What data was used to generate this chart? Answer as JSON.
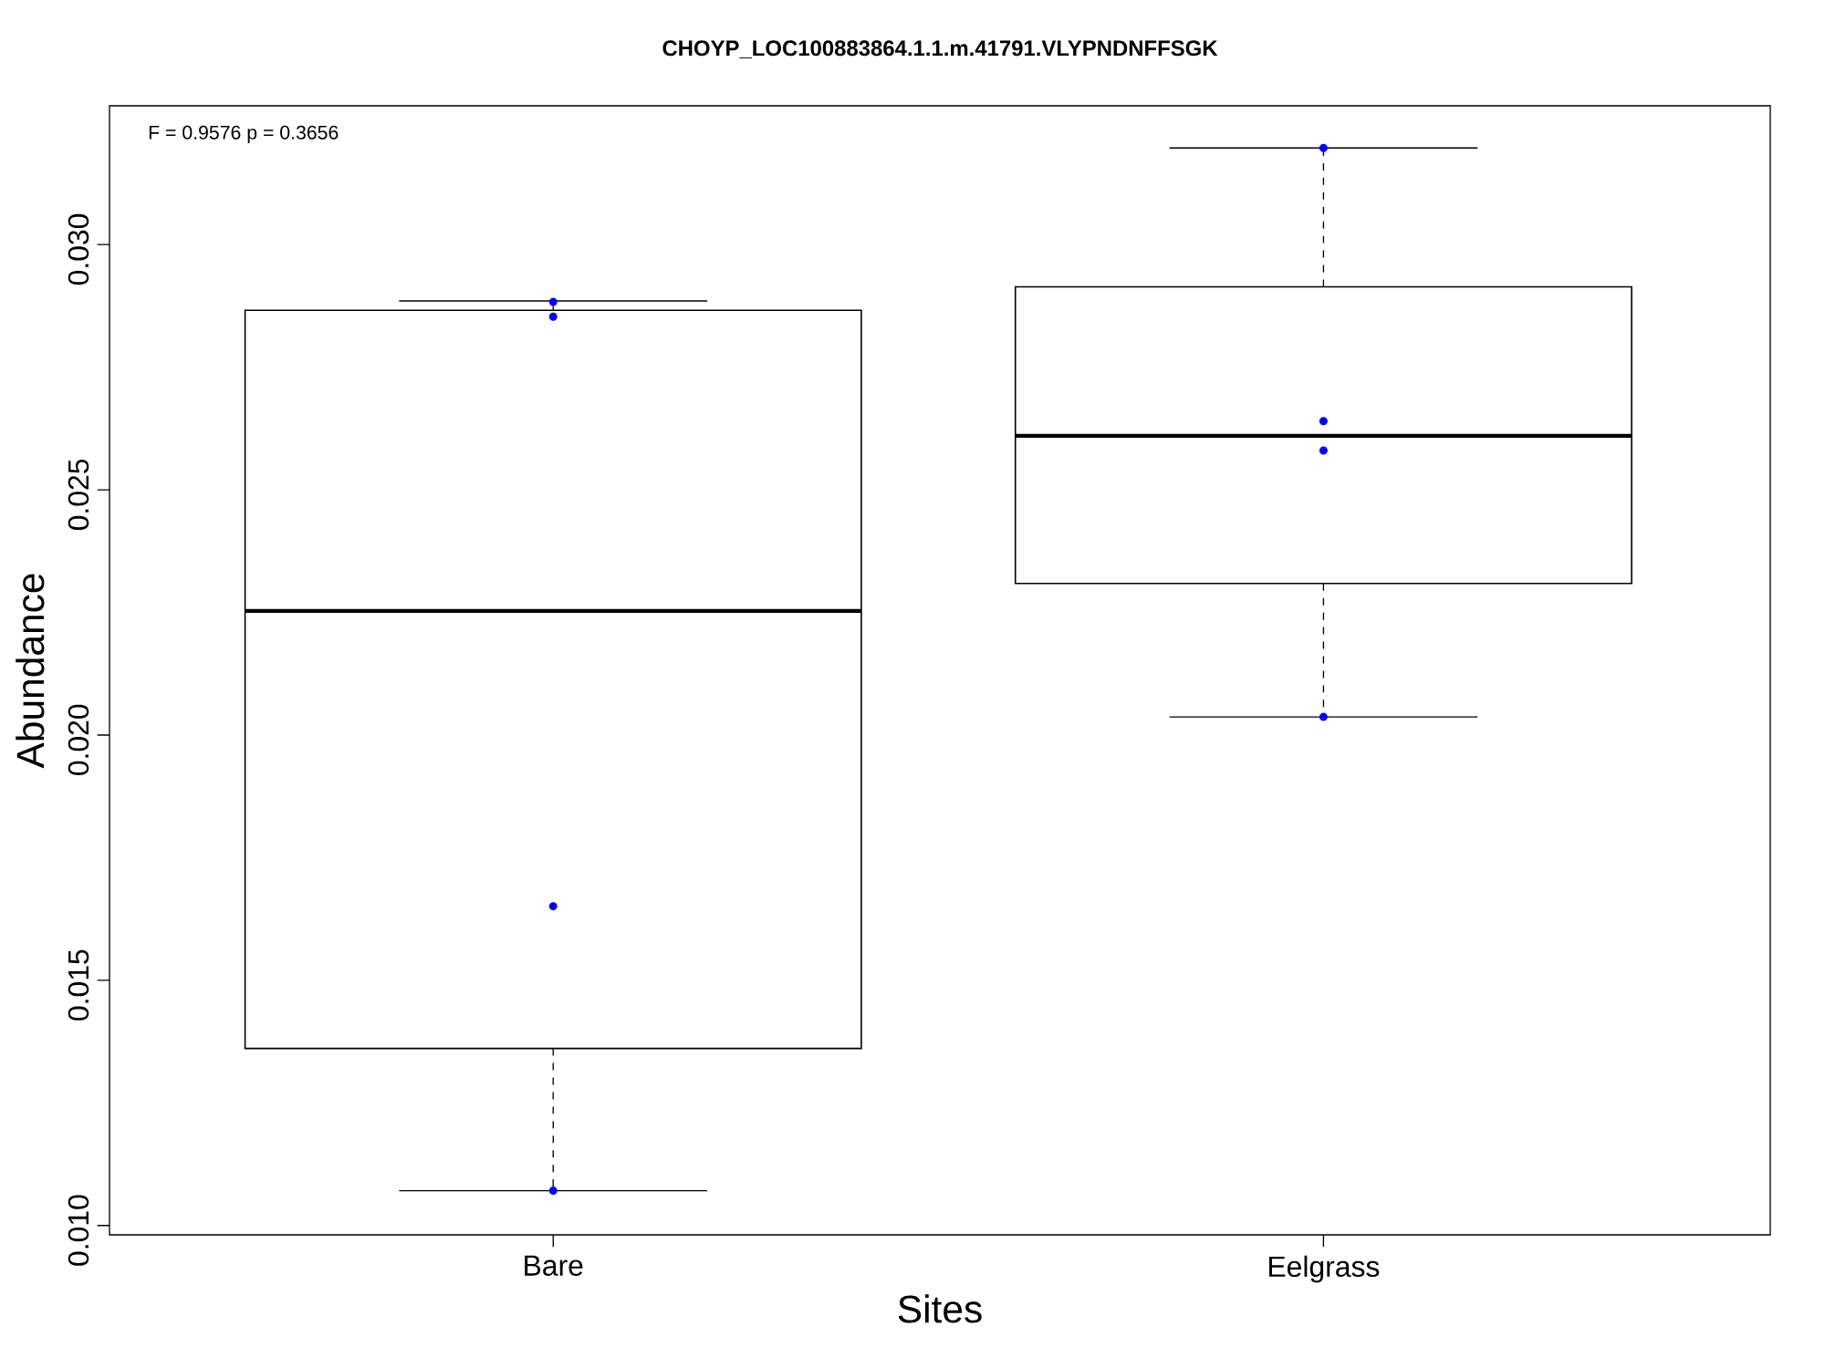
{
  "chart_data": {
    "type": "box",
    "title": "CHOYP_LOC100883864.1.1.m.41791.VLYPNDNFFSGK",
    "xlabel": "Sites",
    "ylabel": "Abundance",
    "categories": [
      "Bare",
      "Eelgrass"
    ],
    "boxes": [
      {
        "low": 0.01071,
        "q1": 0.01361,
        "median": 0.02253,
        "q3": 0.02866,
        "high": 0.02885
      },
      {
        "low": 0.02037,
        "q1": 0.02309,
        "median": 0.0261,
        "q3": 0.02914,
        "high": 0.03197
      }
    ],
    "series": [
      {
        "type": "scatter",
        "color": "#0000ff",
        "x": [
          "Bare",
          "Bare",
          "Bare",
          "Bare",
          "Eelgrass",
          "Eelgrass",
          "Eelgrass",
          "Eelgrass"
        ],
        "values": [
          0.02853,
          0.02883,
          0.01651,
          0.01071,
          0.03197,
          0.0258,
          0.0264,
          0.02037
        ]
      }
    ],
    "ylim": [
      0.00981,
      0.03283
    ],
    "yticks": [
      {
        "value": 0.01,
        "label": "0.010"
      },
      {
        "value": 0.015,
        "label": "0.015"
      },
      {
        "value": 0.02,
        "label": "0.020"
      },
      {
        "value": 0.025,
        "label": "0.025"
      },
      {
        "value": 0.03,
        "label": "0.030"
      }
    ],
    "marker": "circle",
    "annotations": [
      "F = 0.9576 p = 0.3656"
    ]
  }
}
